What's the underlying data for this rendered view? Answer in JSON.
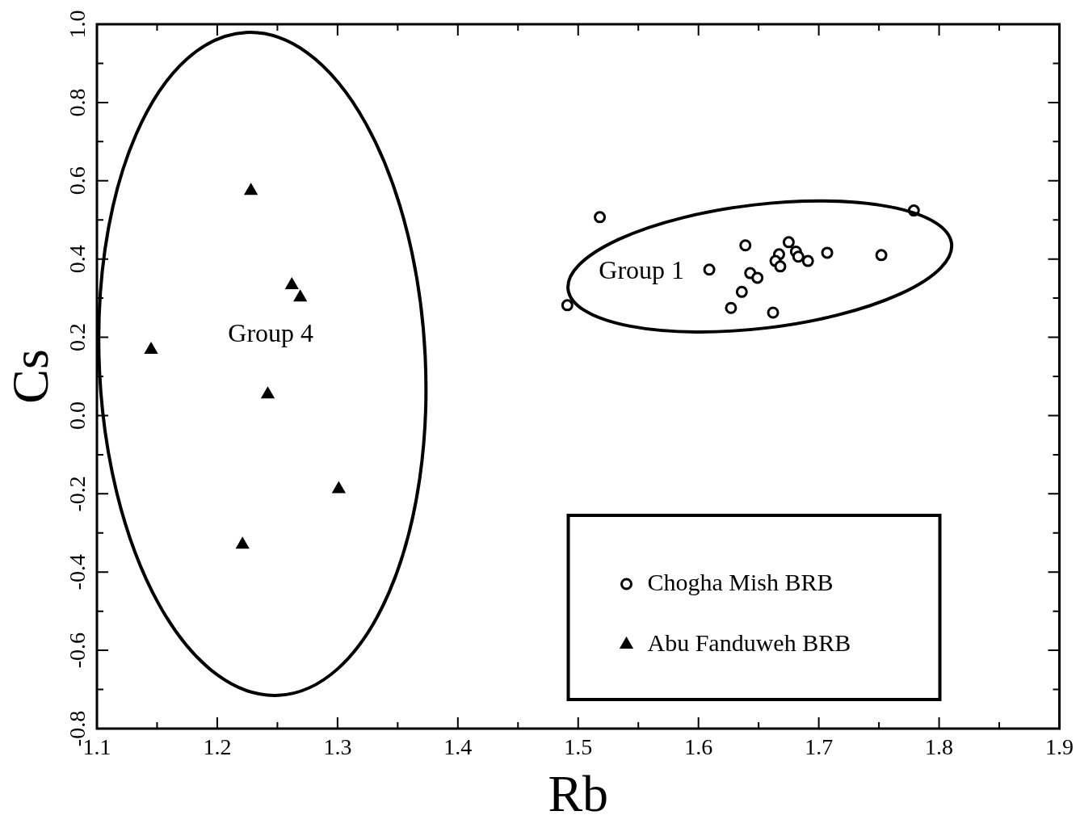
{
  "chart_data": {
    "type": "scatter",
    "xlabel": "Rb",
    "ylabel": "Cs",
    "xlim": [
      1.1,
      1.9
    ],
    "ylim": [
      -0.8,
      1.0
    ],
    "xticks": [
      1.1,
      {
        "value": 1.15,
        "label": null
      },
      1.2,
      {
        "value": 1.25,
        "label": null
      },
      1.3,
      {
        "value": 1.35,
        "label": null
      },
      1.4,
      {
        "value": 1.45,
        "label": null
      },
      1.5,
      {
        "value": 1.55,
        "label": null
      },
      1.6,
      {
        "value": 1.65,
        "label": null
      },
      1.7,
      {
        "value": 1.75,
        "label": null
      },
      1.8,
      {
        "value": 1.85,
        "label": null
      },
      1.9
    ],
    "yticks": [
      -0.8,
      {
        "value": -0.7,
        "label": null
      },
      -0.6,
      {
        "value": -0.5,
        "label": null
      },
      -0.4,
      {
        "value": -0.3,
        "label": null
      },
      -0.2,
      {
        "value": -0.1,
        "label": null
      },
      {
        "value": 0,
        "label": "0.0"
      },
      {
        "value": 0.1,
        "label": null
      },
      0.2,
      {
        "value": 0.3,
        "label": null
      },
      0.4,
      {
        "value": 0.5,
        "label": null
      },
      0.6,
      {
        "value": 0.7,
        "label": null
      },
      0.8,
      {
        "value": 0.9,
        "label": null
      },
      {
        "value": 1.0,
        "label": "1.0"
      }
    ],
    "legend": "bottom right",
    "grid": false,
    "series": [
      {
        "name": "Chogha Mish BRB",
        "color": "#000000",
        "marker": "circle",
        "x": [
          1.518,
          1.779,
          1.491,
          1.609,
          1.639,
          1.675,
          1.707,
          1.752,
          1.643,
          1.649,
          1.636,
          1.627,
          1.662,
          1.667,
          1.664,
          1.668,
          1.681,
          1.683,
          1.691
        ],
        "values": [
          0.507,
          0.524,
          0.282,
          0.373,
          0.435,
          0.443,
          0.416,
          0.41,
          0.364,
          0.352,
          0.316,
          0.275,
          0.263,
          0.412,
          0.395,
          0.381,
          0.419,
          0.406,
          0.395
        ]
      },
      {
        "name": "Abu Fanduweh BRB",
        "color": "#000000",
        "marker": "triangle",
        "x": [
          1.228,
          1.262,
          1.269,
          1.145,
          1.242,
          1.301,
          1.221
        ],
        "values": [
          0.574,
          0.333,
          0.302,
          0.168,
          0.054,
          -0.188,
          -0.33
        ]
      }
    ],
    "annotations": [
      "Group 4",
      "Group 1"
    ]
  }
}
